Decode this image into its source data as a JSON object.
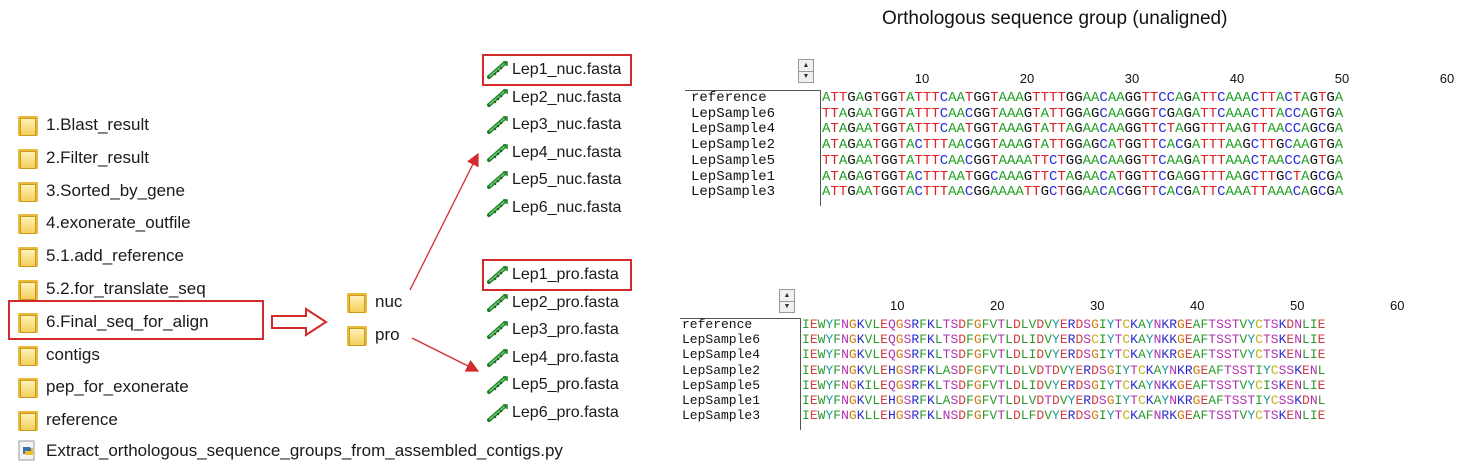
{
  "folders": [
    {
      "label": "1.Blast_result"
    },
    {
      "label": "2.Filter_result"
    },
    {
      "label": "3.Sorted_by_gene"
    },
    {
      "label": "4.exonerate_outfile"
    },
    {
      "label": "5.1.add_reference"
    },
    {
      "label": "5.2.for_translate_seq"
    },
    {
      "label": "6.Final_seq_for_align"
    },
    {
      "label": "contigs"
    },
    {
      "label": "pep_for_exonerate"
    },
    {
      "label": "reference"
    }
  ],
  "script_file": "Extract_orthologous_sequence_groups_from_assembled_contigs.py",
  "subfolders": [
    {
      "label": "nuc"
    },
    {
      "label": "pro"
    }
  ],
  "nuc_files": [
    "Lep1_nuc.fasta",
    "Lep2_nuc.fasta",
    "Lep3_nuc.fasta",
    "Lep4_nuc.fasta",
    "Lep5_nuc.fasta",
    "Lep6_nuc.fasta"
  ],
  "pro_files": [
    "Lep1_pro.fasta",
    "Lep2_pro.fasta",
    "Lep3_pro.fasta",
    "Lep4_pro.fasta",
    "Lep5_pro.fasta",
    "Lep6_pro.fasta"
  ],
  "heading": "Orthologous sequence group (unaligned)",
  "nuc_alignment": {
    "ruler": [
      "10",
      "20",
      "30",
      "40",
      "50",
      "60"
    ],
    "names": [
      "reference",
      "LepSample6",
      "LepSample4",
      "LepSample2",
      "LepSample5",
      "LepSample1",
      "LepSample3"
    ],
    "seqs": [
      "ATTGAGTGGTATTTCAATGGTAAAGTTTTGGAACAAGGTTCCAGATTCAAACTTACTAGTGA",
      "TTAGAATGGTATTTCAACGGTAAAGTATTGGAGCAAGGGTCGAGATTCAAACTTACCAGTGA",
      "ATAGAATGGTATTTCAATGGTAAAGTATTAGAACAAGGTTCTAGGTTTAAGTTAACCAGCGA",
      "ATAGAATGGTACTTTAACGGTAAAGTATTGGAGCATGGTTCACGATTTAAGCTTGCAAGTGA",
      "TTAGAATGGTATTTCAACGGTAAAATTCTGGAACAAGGTTCAAGATTTAAACTAACCAGTGA",
      "ATAGAGTGGTACTTTAATGGCAAAGTTCTAGAACATGGTTCGAGGTTTAAGCTTGCTAGCGA",
      "ATTGAATGGTACTTTAACGGAAAATTGCTGGAACACGGTTCACGATTCAAATTAAACAGCGA"
    ],
    "colors": {
      "A": "#22a022",
      "T": "#e02020",
      "G": "#111111",
      "C": "#2a2ae0"
    }
  },
  "pro_alignment": {
    "ruler": [
      "10",
      "20",
      "30",
      "40",
      "50",
      "60"
    ],
    "names": [
      "reference",
      "LepSample6",
      "LepSample4",
      "LepSample2",
      "LepSample5",
      "LepSample1",
      "LepSample3"
    ],
    "seqs": [
      "IEWYFNGKVLEQGSRFKLTSDFGFVTLDLVDVYERDSGIYTCKAYNKRGEAFTSSTVYCTSKDNLIER",
      "IEWYFNGKVLEQGSRFKLTSDFGFVTLDLIDVYERDSCIYTCKAYNKKGEAFTSSTVYCTSKENLIER",
      "IEWYFNGKVLEQGSRFKLTSDFGFVTLDLIDVYERDSGIYTCKAYNKRGEAFTSSTVYCTSKENLIER",
      "IEWYFNGKVLEHGSRFKLASDFGFVTLDLVDTDVYERDSGIYTCKAYNKRGEAFTSSTIYCSSKENLIER",
      "IEWYFNGKILEQGSRFKLTSDFGFVTLDLIDVYERDSGIYTCKAYNKKGEAFTSSTVYCISKENLIER",
      "IEWYFNGKVLEHGSRFKLASDFGFVTLDLVDTDVYERDSGIYTCKAYNKRGEAFTSSTIYCSSKDNLIER",
      "IEWYFNGKLLEHGSRFKLNSDFGFVTLDLFDVYERDSGIYTCKAFNRKGEAFTSSTVYCTSKENLIER"
    ],
    "colors": {
      "I": "#2a9a2a",
      "L": "#2a9a2a",
      "V": "#2a9a2a",
      "M": "#2a9a2a",
      "A": "#2a9a2a",
      "F": "#2a9a2a",
      "W": "#2a9a2a",
      "E": "#d04040",
      "D": "#d04040",
      "K": "#2a2ad0",
      "R": "#2a2ad0",
      "H": "#2a2ad0",
      "Y": "#1a9a9a",
      "N": "#b030b0",
      "Q": "#b030b0",
      "S": "#b030b0",
      "T": "#b030b0",
      "G": "#d07a10",
      "P": "#d07a10",
      "C": "#c8b010"
    }
  }
}
